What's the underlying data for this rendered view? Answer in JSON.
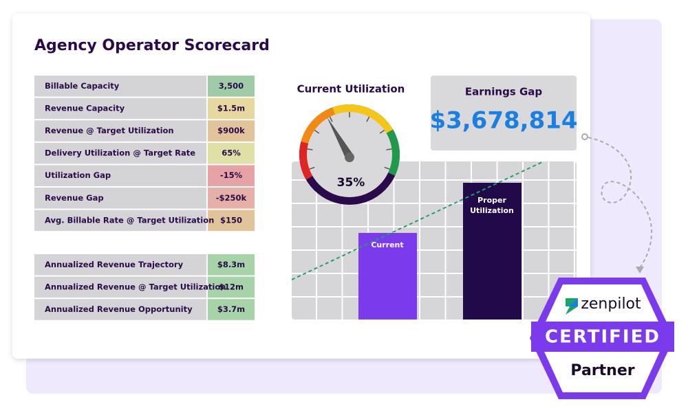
{
  "title": "Agency Operator Scorecard",
  "table": {
    "rows": [
      [
        "Billable Capacity",
        "3,500"
      ],
      [
        "Revenue Capacity",
        "$1.5m"
      ],
      [
        "Revenue @ Target Utilization",
        "$900k"
      ],
      [
        "Delivery Utilization @ Target Rate",
        "65%"
      ],
      [
        "Utilization Gap",
        "-15%"
      ],
      [
        "Revenue Gap",
        "-$250k"
      ],
      [
        "Avg. Billable Rate @ Target Utilization",
        "$150"
      ]
    ]
  },
  "table2": {
    "rows": [
      [
        "Annualized Revenue Trajectory",
        "$8.3m"
      ],
      [
        "Annualized Revenue @ Target Utilization",
        "$12m"
      ],
      [
        "Annualized Revenue Opportunity",
        "$3.7m"
      ]
    ]
  },
  "gauge": {
    "title": "Current Utilization",
    "label": "35%"
  },
  "earnings": {
    "title": "Earnings Gap",
    "value": "$3,678,814"
  },
  "bars": {
    "current": "Current",
    "proper": "Proper Utilization"
  },
  "badge": {
    "brand": "zenpilot",
    "certified": "CERTIFIED",
    "partner": "Partner"
  }
}
